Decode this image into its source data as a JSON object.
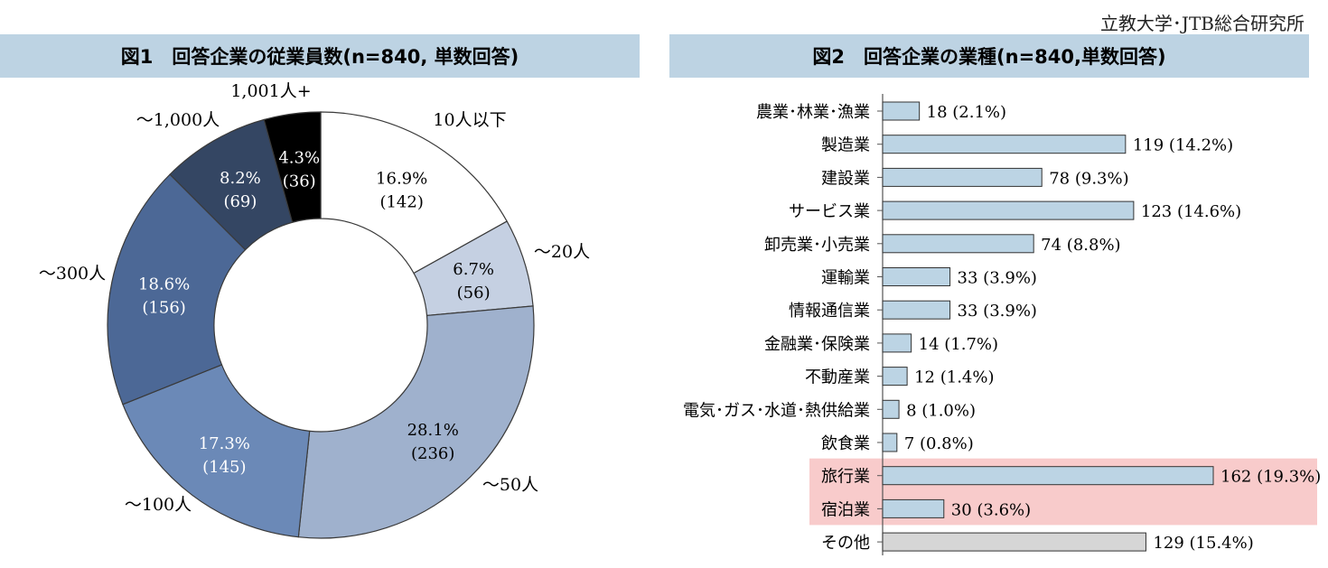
{
  "credit": "立教大学･JTB総合研究所",
  "colors": {
    "title_bg": "#bdd3e3",
    "bar_fill": "#bcd4e4",
    "bar_other_fill": "#d6d6d6",
    "highlight": "#f8cbcb"
  },
  "chart_data": [
    {
      "type": "pie",
      "donut": true,
      "title": "図1　回答企業の従業員数(n=840, 単数回答)",
      "slices": [
        {
          "label": "10人以下",
          "percent": "16.9%",
          "count": "(142)",
          "value": 142,
          "color": "#ffffff",
          "text_color": "#000000"
        },
        {
          "label": "～20人",
          "percent": "6.7%",
          "count": "(56)",
          "value": 56,
          "color": "#c5d0e2",
          "text_color": "#000000"
        },
        {
          "label": "～50人",
          "percent": "28.1%",
          "count": "(236)",
          "value": 236,
          "color": "#9fb1cd",
          "text_color": "#000000"
        },
        {
          "label": "～100人",
          "percent": "17.3%",
          "count": "(145)",
          "value": 145,
          "color": "#6b89b7",
          "text_color": "#ffffff"
        },
        {
          "label": "～300人",
          "percent": "18.6%",
          "count": "(156)",
          "value": 156,
          "color": "#4c6896",
          "text_color": "#ffffff"
        },
        {
          "label": "～1,000人",
          "percent": "8.2%",
          "count": "(69)",
          "value": 69,
          "color": "#344663",
          "text_color": "#ffffff"
        },
        {
          "label": "1,001人+",
          "percent": "4.3%",
          "count": "(36)",
          "value": 36,
          "color": "#000000",
          "text_color": "#ffffff"
        }
      ]
    },
    {
      "type": "bar",
      "orientation": "horizontal",
      "title": "図2　回答企業の業種(n=840,単数回答)",
      "xlim": [
        0,
        162
      ],
      "categories": [
        "農業･林業･漁業",
        "製造業",
        "建設業",
        "サービス業",
        "卸売業･小売業",
        "運輸業",
        "情報通信業",
        "金融業･保険業",
        "不動産業",
        "電気･ガス･水道･熱供給業",
        "飲食業",
        "旅行業",
        "宿泊業",
        "その他"
      ],
      "values": [
        18,
        119,
        78,
        123,
        74,
        33,
        33,
        14,
        12,
        8,
        7,
        162,
        30,
        129
      ],
      "value_labels": [
        "18 (2.1%)",
        "119 (14.2%)",
        "78 (9.3%)",
        "123 (14.6%)",
        "74 (8.8%)",
        "33 (3.9%)",
        "33 (3.9%)",
        "14 (1.7%)",
        "12 (1.4%)",
        "8 (1.0%)",
        "7 (0.8%)",
        "162 (19.3%)",
        "30 (3.6%)",
        "129 (15.4%)"
      ],
      "highlighted": [
        "旅行業",
        "宿泊業"
      ],
      "other_category": "その他"
    }
  ]
}
